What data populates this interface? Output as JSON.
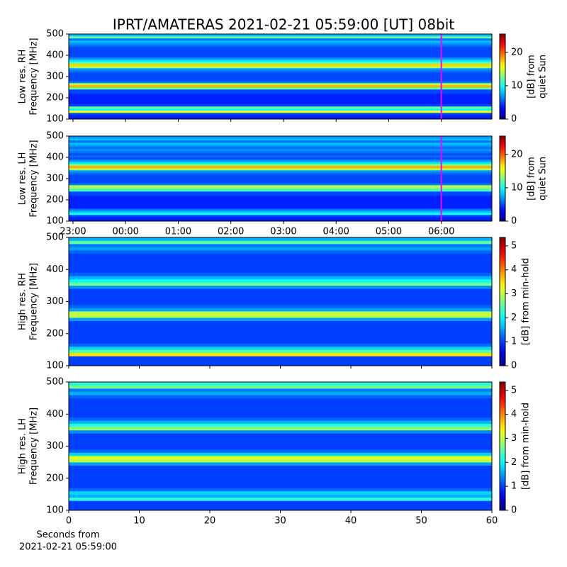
{
  "title": "IPRT/AMATERAS 2021-02-21 05:59:00 [UT]   08bit",
  "chart_data": [
    {
      "type": "heatmap",
      "colormap": "jet",
      "ylabel": [
        "Low res. RH",
        "Frequency [MHz]"
      ],
      "xlim": [
        -0.08,
        7.96
      ],
      "ylim": [
        100,
        500
      ],
      "yticks": [
        100,
        200,
        300,
        400,
        500
      ],
      "marker_x": 7.0,
      "marker_color": "#ff00ff",
      "zlim": [
        0,
        25.5
      ],
      "zticks": [
        0,
        10,
        20
      ],
      "zlabel": [
        "[dB] from",
        "quiet Sun"
      ],
      "y": [
        100,
        110,
        120,
        130,
        140,
        150,
        160,
        170,
        180,
        190,
        200,
        210,
        220,
        230,
        240,
        250,
        260,
        270,
        280,
        290,
        300,
        310,
        320,
        330,
        340,
        350,
        360,
        370,
        380,
        390,
        400,
        410,
        420,
        430,
        440,
        450,
        460,
        470,
        480,
        490,
        500
      ],
      "values": [
        4,
        4,
        5,
        16,
        10,
        12,
        5,
        4,
        4,
        4,
        4,
        4,
        5,
        5,
        12,
        18,
        14,
        6,
        5,
        5,
        5,
        5,
        6,
        7,
        14,
        17,
        12,
        9,
        7,
        5,
        5,
        5,
        5,
        5,
        6,
        7,
        8,
        6,
        12,
        8
      ]
    },
    {
      "type": "heatmap",
      "colormap": "jet",
      "ylabel": [
        "Low res. LH",
        "Frequency [MHz]"
      ],
      "xlim": [
        -0.08,
        7.96
      ],
      "ylim": [
        100,
        500
      ],
      "yticks": [
        100,
        200,
        300,
        400,
        500
      ],
      "xticks": [
        {
          "value": 0,
          "label": "23:00"
        },
        {
          "value": 1,
          "label": "00:00"
        },
        {
          "value": 2,
          "label": "01:00"
        },
        {
          "value": 3,
          "label": "02:00"
        },
        {
          "value": 4,
          "label": "03:00"
        },
        {
          "value": 5,
          "label": "04:00"
        },
        {
          "value": 6,
          "label": "05:00"
        },
        {
          "value": 7,
          "label": "06:00"
        }
      ],
      "marker_x": 7.0,
      "marker_color": "#ff00ff",
      "zlim": [
        0,
        25.5
      ],
      "zticks": [
        0,
        10,
        20
      ],
      "zlabel": [
        "[dB] from",
        "quiet Sun"
      ],
      "y": [
        100,
        110,
        120,
        130,
        140,
        150,
        160,
        170,
        180,
        190,
        200,
        210,
        220,
        230,
        240,
        250,
        260,
        270,
        280,
        290,
        300,
        310,
        320,
        330,
        340,
        350,
        360,
        370,
        380,
        390,
        400,
        410,
        420,
        430,
        440,
        450,
        460,
        470,
        480,
        490,
        500
      ],
      "values": [
        4,
        4,
        5,
        10,
        8,
        6,
        4,
        4,
        4,
        4,
        4,
        4,
        5,
        5,
        11,
        13,
        14,
        6,
        5,
        5,
        5,
        5,
        6,
        7,
        14,
        18,
        13,
        9,
        7,
        5,
        6,
        5,
        6,
        7,
        6,
        7,
        8,
        6,
        8,
        7
      ]
    },
    {
      "type": "heatmap",
      "colormap": "jet",
      "ylabel": [
        "High res. RH",
        "Frequency [MHz]"
      ],
      "xlim": [
        0,
        60
      ],
      "ylim": [
        100,
        500
      ],
      "yticks": [
        100,
        200,
        300,
        400,
        500
      ],
      "zlim": [
        0,
        5.35
      ],
      "zticks": [
        0,
        1,
        2,
        3,
        4,
        5
      ],
      "zlabel": [
        "[dB] from min-hold"
      ],
      "y": [
        100,
        110,
        120,
        130,
        140,
        150,
        160,
        170,
        180,
        190,
        200,
        210,
        220,
        230,
        240,
        250,
        260,
        270,
        280,
        290,
        300,
        310,
        320,
        330,
        340,
        350,
        360,
        370,
        380,
        390,
        400,
        410,
        420,
        430,
        440,
        450,
        460,
        470,
        480,
        490,
        500
      ],
      "values": [
        1,
        1,
        1,
        3.5,
        2.5,
        1.8,
        1.2,
        1,
        1,
        1,
        1,
        1,
        1,
        1,
        1.5,
        3,
        3,
        1.5,
        1.2,
        1,
        1,
        1,
        1,
        1,
        1.4,
        2.6,
        2,
        1.6,
        1.2,
        1,
        1,
        1,
        1,
        1,
        1,
        1.2,
        1.5,
        1.3,
        2.5,
        1.6
      ]
    },
    {
      "type": "heatmap",
      "colormap": "jet",
      "ylabel": [
        "High res. LH",
        "Frequency [MHz]"
      ],
      "xlim": [
        0,
        60
      ],
      "ylim": [
        100,
        500
      ],
      "yticks": [
        100,
        200,
        300,
        400,
        500
      ],
      "xticks": [
        0,
        10,
        20,
        30,
        40,
        50,
        60
      ],
      "xlabel": [
        "Seconds from",
        "2021-02-21 05:59:00"
      ],
      "zlim": [
        0,
        5.35
      ],
      "zticks": [
        0,
        1,
        2,
        3,
        4,
        5
      ],
      "zlabel": [
        "[dB] from min-hold"
      ],
      "y": [
        100,
        110,
        120,
        130,
        140,
        150,
        160,
        170,
        180,
        190,
        200,
        210,
        220,
        230,
        240,
        250,
        260,
        270,
        280,
        290,
        300,
        310,
        320,
        330,
        340,
        350,
        360,
        370,
        380,
        390,
        400,
        410,
        420,
        430,
        440,
        450,
        460,
        470,
        480,
        490,
        500
      ],
      "values": [
        1,
        1,
        1,
        2.2,
        1.6,
        1.8,
        1.2,
        1,
        1,
        1,
        1,
        1,
        1,
        1,
        1.5,
        3,
        3.2,
        1.8,
        1.2,
        1,
        1,
        1,
        1,
        1,
        1.4,
        2.8,
        2.2,
        1.6,
        1.2,
        1,
        1,
        1,
        1,
        1,
        1,
        1.2,
        1.6,
        1.3,
        2.6,
        2.2
      ]
    }
  ]
}
